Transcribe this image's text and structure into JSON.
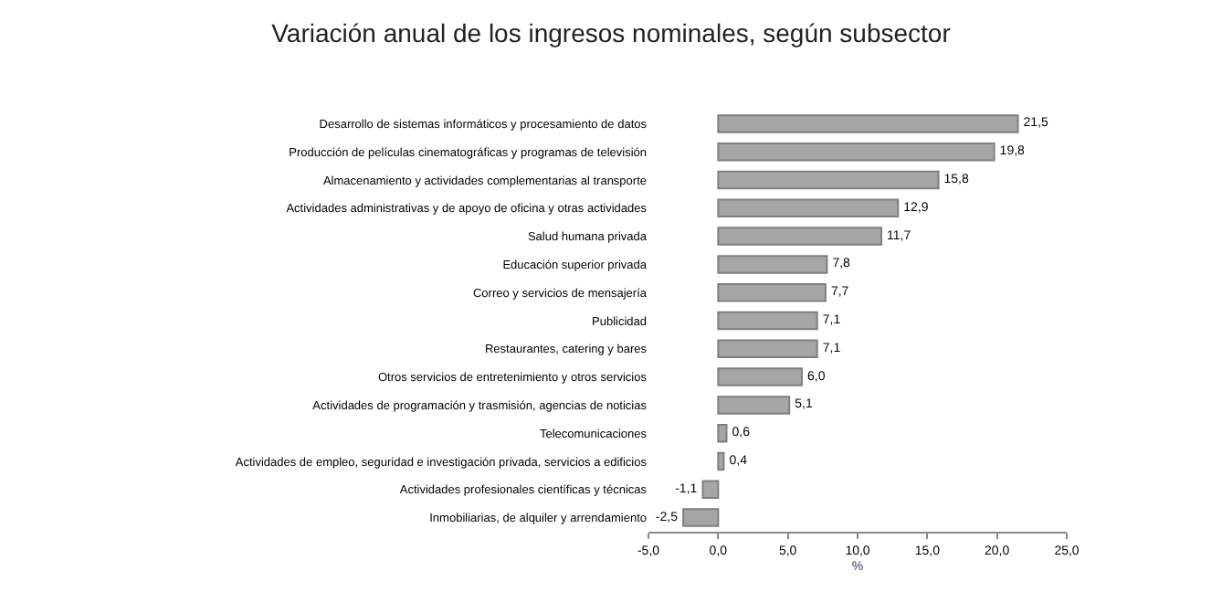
{
  "chart_data": {
    "type": "bar",
    "orientation": "horizontal",
    "title": "Variación anual de los ingresos nominales, según subsector",
    "xlabel": "%",
    "categories": [
      "Desarrollo de sistemas informáticos y procesamiento de datos",
      "Producción de películas cinematográficas y programas de televisión",
      "Almacenamiento y actividades complementarias al transporte",
      "Actividades administrativas y de apoyo de oficina y otras actividades",
      "Salud humana privada",
      "Educación superior privada",
      "Correo y servicios de mensajería",
      "Publicidad",
      "Restaurantes, catering y bares",
      "Otros servicios de entretenimiento y otros servicios",
      "Actividades de programación y trasmisión, agencias de noticias",
      "Telecomunicaciones",
      "Actividades de empleo, seguridad e investigación privada, servicios a edificios",
      "Actividades profesionales científicas y técnicas",
      "Inmobiliarias, de alquiler y arrendamiento"
    ],
    "values": [
      21.5,
      19.8,
      15.8,
      12.9,
      11.7,
      7.8,
      7.7,
      7.1,
      7.1,
      6.0,
      5.1,
      0.6,
      0.4,
      -1.1,
      -2.5
    ],
    "value_labels": [
      "21,5",
      "19,8",
      "15,8",
      "12,9",
      "11,7",
      "7,8",
      "7,7",
      "7,1",
      "7,1",
      "6,0",
      "5,1",
      "0,6",
      "0,4",
      "-1,1",
      "-2,5"
    ],
    "color": "#a6a6a6",
    "xlim": [
      -5,
      25
    ],
    "xticks": [
      {
        "value": -5,
        "label": "-5,0"
      },
      {
        "value": 0,
        "label": "0,0"
      },
      {
        "value": 5,
        "label": "5,0"
      },
      {
        "value": 10,
        "label": "10,0"
      },
      {
        "value": 15,
        "label": "15,0"
      },
      {
        "value": 20,
        "label": "20,0"
      },
      {
        "value": 25,
        "label": "25,0"
      }
    ]
  }
}
